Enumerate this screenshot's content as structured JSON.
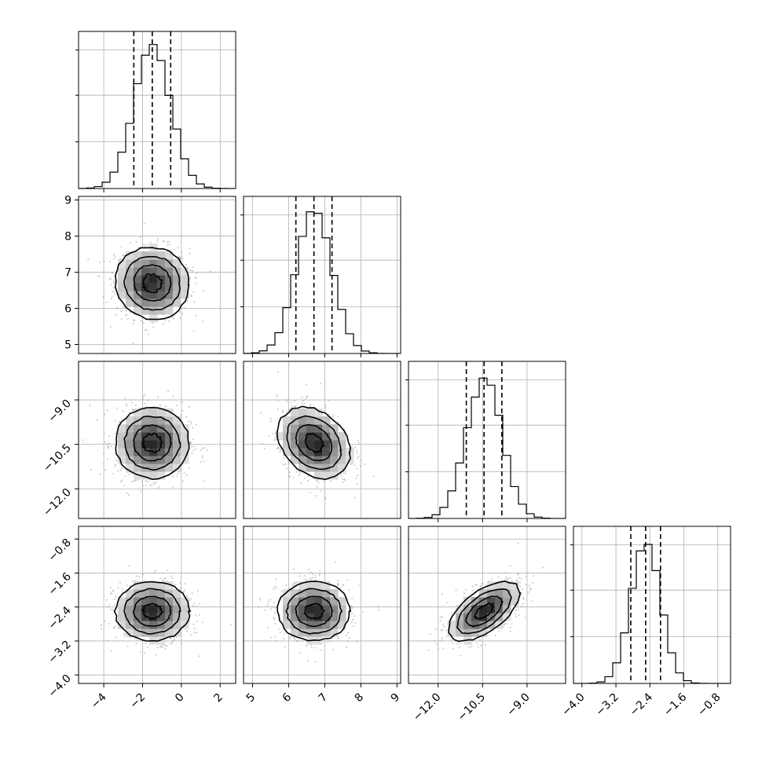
{
  "chart_data": {
    "type": "corner",
    "parameters": [
      {
        "index": 0,
        "mean": -1.5,
        "sigma": 0.95,
        "range": [
          -5.3,
          2.8
        ],
        "ticks": [
          -4,
          -2,
          0,
          2
        ],
        "tick_labels": [
          "−4",
          "−2",
          "0",
          "2"
        ],
        "quantiles": [
          -2.45,
          -1.5,
          -0.55
        ]
      },
      {
        "index": 1,
        "mean": 6.7,
        "sigma": 0.5,
        "range": [
          4.75,
          9.1
        ],
        "ticks": [
          5,
          6,
          7,
          8,
          9
        ],
        "tick_labels": [
          "5",
          "6",
          "7",
          "8",
          "9"
        ],
        "quantiles": [
          6.2,
          6.7,
          7.2
        ]
      },
      {
        "index": 2,
        "mean": -10.45,
        "sigma": 0.6,
        "range": [
          -13.0,
          -7.7
        ],
        "ticks": [
          -12.0,
          -10.5,
          -9.0
        ],
        "tick_labels": [
          "−12.0",
          "−10.5",
          "−9.0"
        ],
        "quantiles": [
          -11.05,
          -10.45,
          -9.85
        ]
      },
      {
        "index": 3,
        "mean": -2.5,
        "sigma": 0.35,
        "range": [
          -4.2,
          -0.5
        ],
        "ticks": [
          -4.0,
          -3.2,
          -2.4,
          -1.6,
          -0.8
        ],
        "tick_labels": [
          "−4.0",
          "−3.2",
          "−2.4",
          "−1.6",
          "−0.8"
        ],
        "quantiles": [
          -2.85,
          -2.5,
          -2.15
        ]
      }
    ],
    "correlations": [
      {
        "pair": [
          0,
          1
        ],
        "rho": -0.05
      },
      {
        "pair": [
          0,
          2
        ],
        "rho": 0.0
      },
      {
        "pair": [
          1,
          2
        ],
        "rho": -0.28
      },
      {
        "pair": [
          0,
          3
        ],
        "rho": 0.0
      },
      {
        "pair": [
          1,
          3
        ],
        "rho": 0.0
      },
      {
        "pair": [
          2,
          3
        ],
        "rho": 0.6
      }
    ],
    "histogram_bins": 20,
    "contour_levels_sigma": [
      0.5,
      1.0,
      1.5,
      2.0
    ],
    "grid": true
  }
}
